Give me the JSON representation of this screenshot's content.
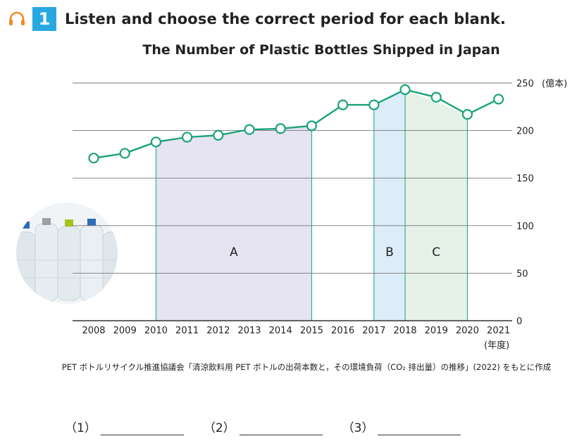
{
  "header": {
    "icon": "headphones-icon",
    "question_number": "1",
    "instruction": "Listen and choose the correct period for each blank."
  },
  "chart_data": {
    "type": "line",
    "title": "The Number of Plastic Bottles Shipped in Japan",
    "x": [
      2008,
      2009,
      2010,
      2011,
      2012,
      2013,
      2014,
      2015,
      2016,
      2017,
      2018,
      2019,
      2020,
      2021
    ],
    "series": [
      {
        "values": [
          171,
          176,
          188,
          193,
          195,
          201,
          202,
          205,
          227,
          227,
          243,
          235,
          217,
          233
        ]
      }
    ],
    "ylim": [
      0,
      250
    ],
    "yticks": [
      0,
      50,
      100,
      150,
      200,
      250
    ],
    "y_unit": "(億本)",
    "x_unit": "(年度)",
    "grid": true,
    "line_color": "#1aa37a",
    "regions": [
      {
        "label": "A",
        "from": 2010,
        "to": 2015,
        "color": "#e6e3f2"
      },
      {
        "label": "B",
        "from": 2017,
        "to": 2018,
        "color": "#dcecf8"
      },
      {
        "label": "C",
        "from": 2018,
        "to": 2020,
        "color": "#e4f2e8"
      }
    ]
  },
  "source_note": "PET ボトルリサイクル推進協議会「清涼飲料用 PET ボトルの出荷本数と，その環境負荷（CO₂ 排出量）の推移」(2022) をもとに作成",
  "answers": [
    {
      "label": "（1）"
    },
    {
      "label": "（2）"
    },
    {
      "label": "（3）"
    }
  ]
}
